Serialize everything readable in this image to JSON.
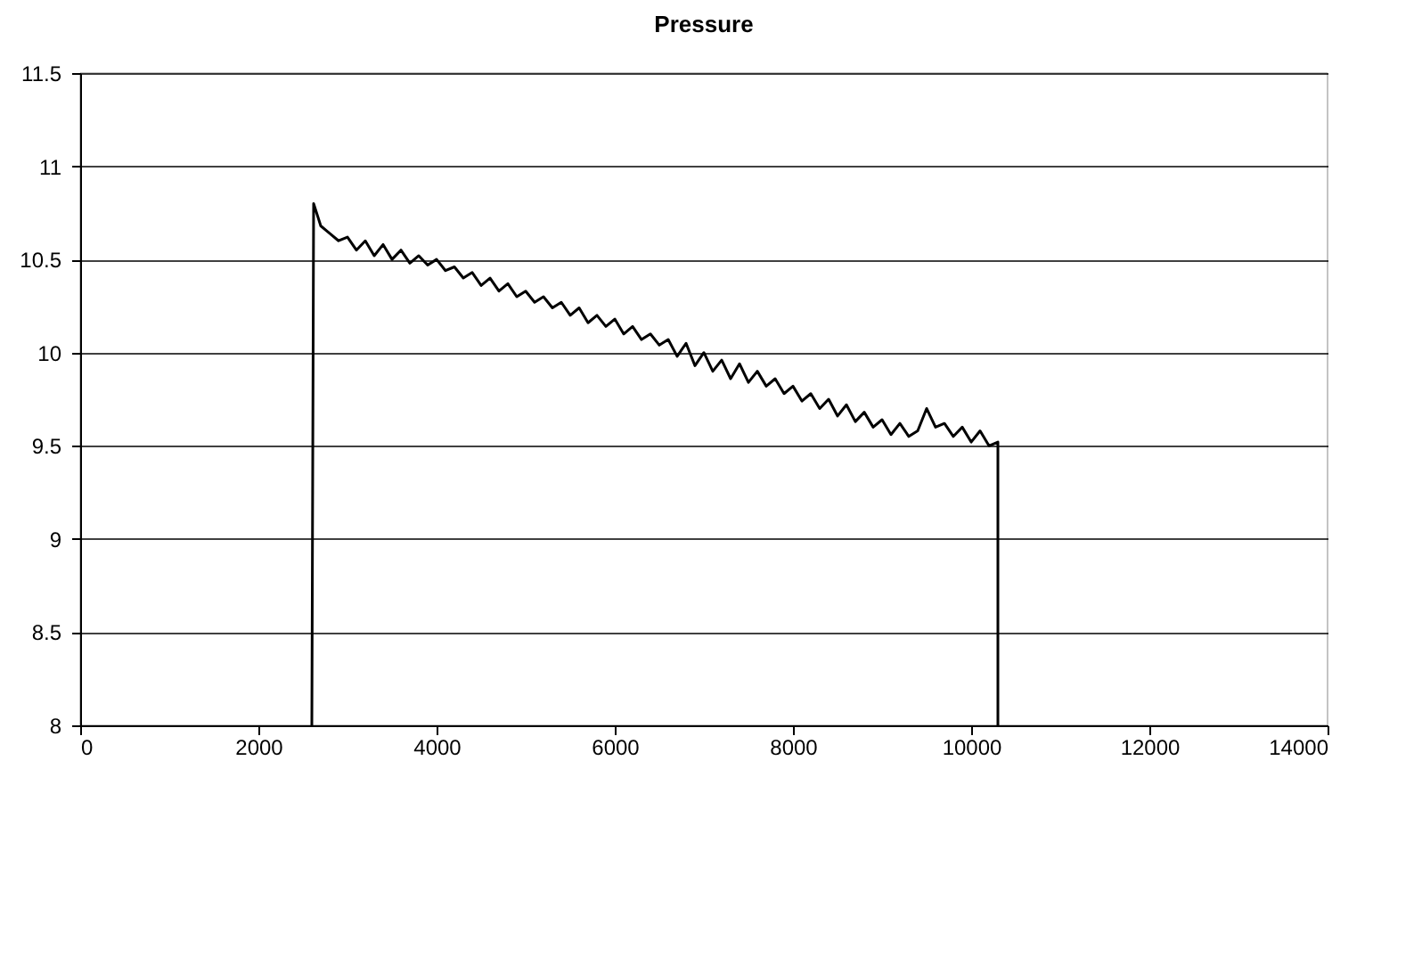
{
  "chart_data": {
    "type": "line",
    "title": "Pressure",
    "series": [
      {
        "color": "#000000",
        "x": [
          2600,
          2620,
          2700,
          2800,
          2900,
          3000,
          3100,
          3200,
          3300,
          3400,
          3500,
          3600,
          3700,
          3800,
          3900,
          4000,
          4100,
          4200,
          4300,
          4400,
          4500,
          4600,
          4700,
          4800,
          4900,
          5000,
          5100,
          5200,
          5300,
          5400,
          5500,
          5600,
          5700,
          5800,
          5900,
          6000,
          6100,
          6200,
          6300,
          6400,
          6500,
          6600,
          6700,
          6800,
          6900,
          7000,
          7100,
          7200,
          7300,
          7400,
          7500,
          7600,
          7700,
          7800,
          7900,
          8000,
          8100,
          8200,
          8300,
          8400,
          8500,
          8600,
          8700,
          8800,
          8900,
          9000,
          9100,
          9200,
          9300,
          9400,
          9500,
          9600,
          9700,
          9800,
          9900,
          10000,
          10100,
          10200,
          10300,
          10300
        ],
        "values": [
          8,
          10.8,
          10.68,
          10.64,
          10.6,
          10.62,
          10.55,
          10.6,
          10.52,
          10.58,
          10.5,
          10.55,
          10.48,
          10.52,
          10.47,
          10.5,
          10.44,
          10.46,
          10.4,
          10.43,
          10.36,
          10.4,
          10.33,
          10.37,
          10.3,
          10.33,
          10.27,
          10.3,
          10.24,
          10.27,
          10.2,
          10.24,
          10.16,
          10.2,
          10.14,
          10.18,
          10.1,
          10.14,
          10.07,
          10.1,
          10.04,
          10.07,
          9.98,
          10.05,
          9.93,
          10.0,
          9.9,
          9.96,
          9.86,
          9.94,
          9.84,
          9.9,
          9.82,
          9.86,
          9.78,
          9.82,
          9.74,
          9.78,
          9.7,
          9.75,
          9.66,
          9.72,
          9.63,
          9.68,
          9.6,
          9.64,
          9.56,
          9.62,
          9.55,
          9.58,
          9.7,
          9.6,
          9.62,
          9.55,
          9.6,
          9.52,
          9.58,
          9.5,
          9.52,
          8
        ]
      }
    ],
    "xlim": [
      0,
      14000
    ],
    "xticks": [
      0,
      2000,
      4000,
      6000,
      8000,
      10000,
      12000,
      14000
    ],
    "ylim": [
      8,
      11.5
    ],
    "yticks": [
      8,
      8.5,
      9,
      9.5,
      10,
      10.5,
      11,
      11.5
    ],
    "grid": "y",
    "legend": false,
    "marker": "none",
    "line_style": "solid"
  }
}
